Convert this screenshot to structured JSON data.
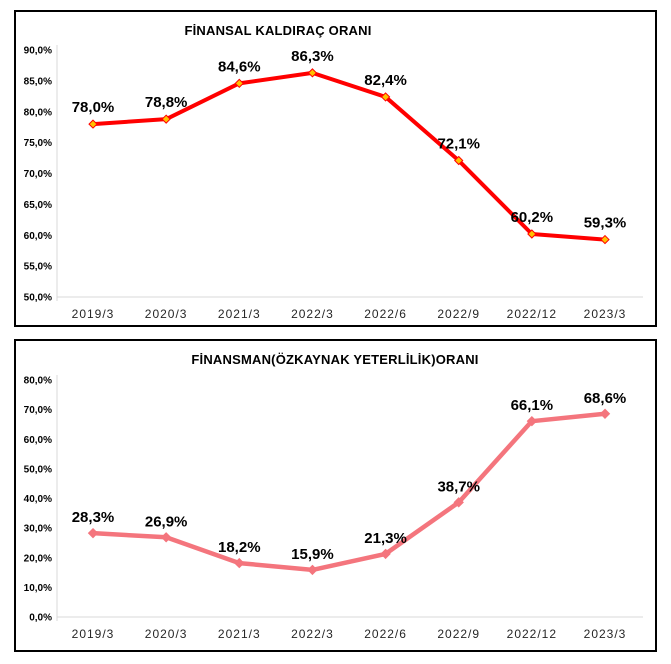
{
  "styles": {
    "background": "#FFFFFF",
    "panel_border_color": "#000000",
    "axis_color": "#D9D9D9",
    "title_color": "#000000",
    "data_label_color": "#000000",
    "category_label_color": "#262626"
  },
  "chart_data": [
    {
      "type": "line",
      "title": "FİNANSAL KALDIRAÇ ORANI",
      "categories": [
        "2019/3",
        "2020/3",
        "2021/3",
        "2022/3",
        "2022/6",
        "2022/9",
        "2022/12",
        "2023/3"
      ],
      "values": [
        78.0,
        78.8,
        84.6,
        86.3,
        82.4,
        72.1,
        60.2,
        59.3
      ],
      "labels": [
        "78,0%",
        "78,8%",
        "84,6%",
        "86,3%",
        "82,4%",
        "72,1%",
        "60,2%",
        "59,3%"
      ],
      "y_ticks": [
        "90,0%",
        "85,0%",
        "80,0%",
        "75,0%",
        "70,0%",
        "65,0%",
        "60,0%",
        "55,0%",
        "50,0%"
      ],
      "ylim": [
        50,
        90
      ],
      "xlabel": "",
      "ylabel": "",
      "grid": false,
      "legend": false,
      "marker_shape": "diamond",
      "line_color": "#FF0000",
      "marker_fill": "#FFC000",
      "marker_stroke": "#FF0000"
    },
    {
      "type": "line",
      "title": "FİNANSMAN(ÖZKAYNAK YETERLİLİK)ORANI",
      "categories": [
        "2019/3",
        "2020/3",
        "2021/3",
        "2022/3",
        "2022/6",
        "2022/9",
        "2022/12",
        "2023/3"
      ],
      "values": [
        28.3,
        26.9,
        18.2,
        15.9,
        21.3,
        38.7,
        66.1,
        68.6
      ],
      "labels": [
        "28,3%",
        "26,9%",
        "18,2%",
        "15,9%",
        "21,3%",
        "38,7%",
        "66,1%",
        "68,6%"
      ],
      "y_ticks": [
        "80,0%",
        "70,0%",
        "60,0%",
        "50,0%",
        "40,0%",
        "30,0%",
        "20,0%",
        "10,0%",
        "0,0%"
      ],
      "ylim": [
        0,
        80
      ],
      "xlabel": "",
      "ylabel": "",
      "grid": false,
      "legend": false,
      "marker_shape": "diamond",
      "line_color": "#F4757D",
      "marker_fill": "#F4757D",
      "marker_stroke": "#F4757D"
    }
  ]
}
